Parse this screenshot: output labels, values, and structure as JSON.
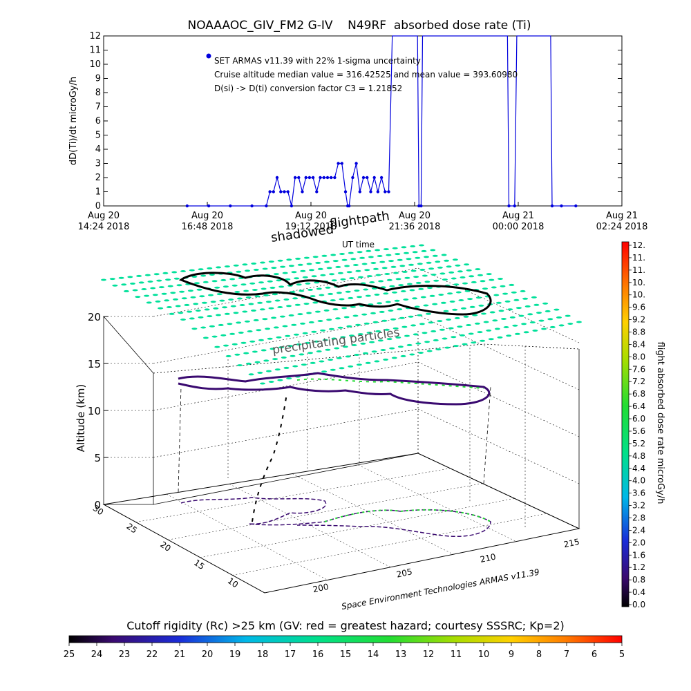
{
  "title": "NOAAAOC_GIV_FM2 G-IV    N49RF  absorbed dose rate (Ti)",
  "top_chart": {
    "chart_data": {
      "type": "line",
      "ylabel": "dD(Ti)/dt microGy/h",
      "xlabel": "UT time",
      "ylim": [
        0,
        12
      ],
      "y_ticks": [
        "0",
        "1",
        "2",
        "3",
        "4",
        "5",
        "6",
        "7",
        "8",
        "9",
        "10",
        "11",
        "12"
      ],
      "x_ticks": [
        {
          "date": "Aug 20",
          "time": "14:24 2018"
        },
        {
          "date": "Aug 20",
          "time": "16:48 2018"
        },
        {
          "date": "Aug 20",
          "time": "19:12 2018"
        },
        {
          "date": "Aug 20",
          "time": "21:36 2018"
        },
        {
          "date": "Aug 21",
          "time": "00:00 2018"
        },
        {
          "date": "Aug 21",
          "time": "02:24 2018"
        }
      ],
      "series": [
        {
          "name": "SET ARMAS v11.39 with 22% 1-sigma uncertainty",
          "points": [
            [
              "16:20",
              0
            ],
            [
              "16:50",
              0
            ],
            [
              "17:20",
              0
            ],
            [
              "17:50",
              0
            ],
            [
              "18:10",
              0
            ],
            [
              "18:15",
              1
            ],
            [
              "18:20",
              1
            ],
            [
              "18:25",
              2
            ],
            [
              "18:30",
              1
            ],
            [
              "18:35",
              1
            ],
            [
              "18:40",
              1
            ],
            [
              "18:45",
              0
            ],
            [
              "18:50",
              2
            ],
            [
              "18:55",
              2
            ],
            [
              "19:00",
              1
            ],
            [
              "19:05",
              2
            ],
            [
              "19:10",
              2
            ],
            [
              "19:15",
              2
            ],
            [
              "19:20",
              1
            ],
            [
              "19:25",
              2
            ],
            [
              "19:30",
              2
            ],
            [
              "19:35",
              2
            ],
            [
              "19:40",
              2
            ],
            [
              "19:45",
              2
            ],
            [
              "19:50",
              3
            ],
            [
              "19:55",
              3
            ],
            [
              "20:00",
              1
            ],
            [
              "20:03",
              0
            ],
            [
              "20:05",
              0
            ],
            [
              "20:10",
              2
            ],
            [
              "20:15",
              3
            ],
            [
              "20:20",
              1
            ],
            [
              "20:25",
              2
            ],
            [
              "20:30",
              2
            ],
            [
              "20:35",
              1
            ],
            [
              "20:40",
              2
            ],
            [
              "20:45",
              1
            ],
            [
              "20:50",
              2
            ],
            [
              "20:55",
              1
            ],
            [
              "21:00",
              1
            ],
            [
              "21:05",
              13
            ],
            [
              "21:40",
              13
            ],
            [
              "21:42",
              0
            ],
            [
              "21:45",
              0
            ],
            [
              "21:47",
              13
            ],
            [
              "23:45",
              13
            ],
            [
              "23:47",
              0
            ],
            [
              "23:55",
              0
            ],
            [
              "23:58",
              13
            ],
            [
              "00:45",
              13
            ],
            [
              "00:47",
              0
            ],
            [
              "01:00",
              0
            ],
            [
              "01:20",
              0
            ]
          ]
        }
      ],
      "annotations": [
        "SET ARMAS v11.39 with 22% 1-sigma uncertainty",
        "Cruise altitude median value = 316.42525 and mean value = 393.60980",
        "D(si) -> D(ti) conversion factor C3 = 1.21852"
      ]
    }
  },
  "plot3d": {
    "chart_data": {
      "type": "scatter",
      "zlabel": "Altitude (km)",
      "z_ticks": [
        "0",
        "5",
        "10",
        "15",
        "20"
      ],
      "lat_ticks": [
        "30",
        "25",
        "20",
        "15",
        "10"
      ],
      "lon_ticks": [
        "200",
        "205",
        "210",
        "215"
      ],
      "labels": {
        "shadowed": "shadowed",
        "flightpath": "flightpath",
        "precip": "precipitating particles",
        "credit": "Space Environment Technologies ARMAS v11.39",
        "ut": "UT time"
      }
    }
  },
  "colorbar": {
    "label": "flight absorbed dose rate microGy/h",
    "ticks": [
      "12.",
      "11.",
      "11.",
      "10.",
      "10.",
      "9.6",
      "9.2",
      "8.8",
      "8.4",
      "8.0",
      "7.6",
      "7.2",
      "6.8",
      "6.4",
      "6.0",
      "5.6",
      "5.2",
      "4.8",
      "4.4",
      "4.0",
      "3.6",
      "3.2",
      "2.8",
      "2.4",
      "2.0",
      "1.6",
      "1.2",
      "0.8",
      "0.4",
      "0.0"
    ]
  },
  "rigidity": {
    "title": "Cutoff rigidity (Rc) >25 km (GV: red = greatest hazard; courtesy SSSRC; Kp=2)",
    "ticks": [
      "25",
      "24",
      "23",
      "22",
      "21",
      "20",
      "19",
      "18",
      "17",
      "16",
      "15",
      "14",
      "13",
      "12",
      "11",
      "10",
      "9",
      "8",
      "7",
      "6",
      "5"
    ]
  },
  "colors": {
    "series": "#0000dd",
    "axis": "#000000",
    "grid_dot": "#00e09a"
  }
}
